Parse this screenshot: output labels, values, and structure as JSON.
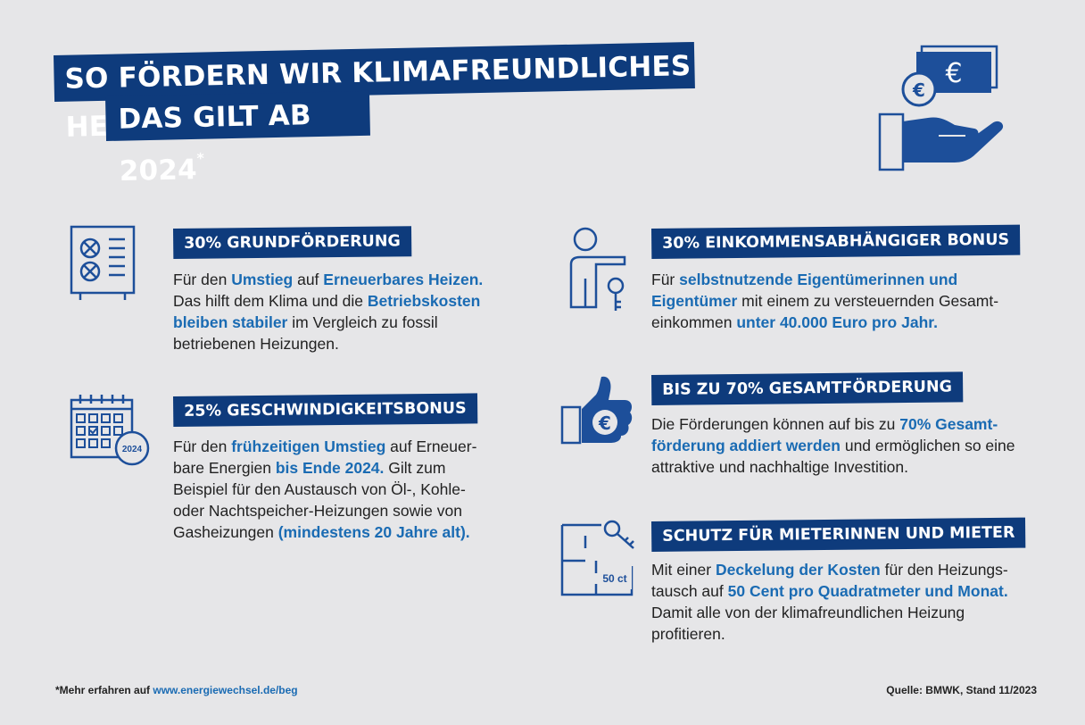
{
  "title": {
    "line1": "SO FÖRDERN WIR KLIMAFREUNDLICHES HEIZEN:",
    "line2": "DAS GILT AB 2024",
    "footnote_mark": "*"
  },
  "colors": {
    "brand_blue": "#0e3b7c",
    "highlight_blue": "#1a6bb3",
    "icon_blue": "#1d4f9a",
    "background": "#e6e6e8"
  },
  "sections": {
    "grundfoerderung": {
      "icon": "heat-pump-icon",
      "heading": "30% GRUNDFÖRDERUNG",
      "t1": "Für den ",
      "h1": "Umstieg",
      "t2": " auf ",
      "h2": "Erneuerbares Heizen.",
      "t3": " Das hilft dem Klima und die ",
      "h3": "Betriebskosten bleiben stabiler",
      "t4": " im Vergleich zu fossil betriebenen Heizungen."
    },
    "geschwindigkeit": {
      "icon": "calendar-icon",
      "icon_label": "2024",
      "heading": "25% GESCHWINDIGKEITSBONUS",
      "t1": "Für den ",
      "h1": "frühzeitigen Umstieg",
      "t2": " auf Erneuer­bare Energien ",
      "h2": "bis Ende 2024.",
      "t3": " Gilt zum Beispiel für den Austausch von Öl-, Kohle- oder Nachtspeicher-Heizungen sowie von Gasheizungen ",
      "h3": "(mindestens 20 Jahre alt)."
    },
    "einkommen": {
      "icon": "person-key-icon",
      "heading": "30% EINKOMMENSABHÄNGIGER BONUS",
      "t1": "Für ",
      "h1": "selbstnutzende Eigentümerinnen und Eigentümer",
      "t2": " mit einem zu versteuernden Gesamt­einkommen ",
      "h2": "unter 40.000 Euro pro Jahr."
    },
    "gesamt": {
      "icon": "thumbs-up-euro-icon",
      "heading": "BIS ZU 70% GESAMTFÖRDERUNG",
      "t1": "Die Förderungen können auf bis zu ",
      "h1": "70% Gesamt­förderung addiert werden",
      "t2": " und ermöglichen so eine attraktive und nachhaltige Investition."
    },
    "mieter": {
      "icon": "floorplan-key-icon",
      "icon_label": "50 ct",
      "heading": "SCHUTZ FÜR MIETERINNEN UND MIETER",
      "t1": "Mit einer ",
      "h1": "Deckelung der Kosten",
      "t2": " für den Heizungs­tausch auf ",
      "h2": "50 Cent pro Quadratmeter und Monat.",
      "t3": " Damit alle von der klimafreundlichen Heizung profitieren."
    }
  },
  "top_icon": "hand-money-icon",
  "footer": {
    "note_prefix": "*Mehr erfahren auf ",
    "link": "www.energiewechsel.de/beg",
    "source": "Quelle: BMWK, Stand 11/2023"
  }
}
